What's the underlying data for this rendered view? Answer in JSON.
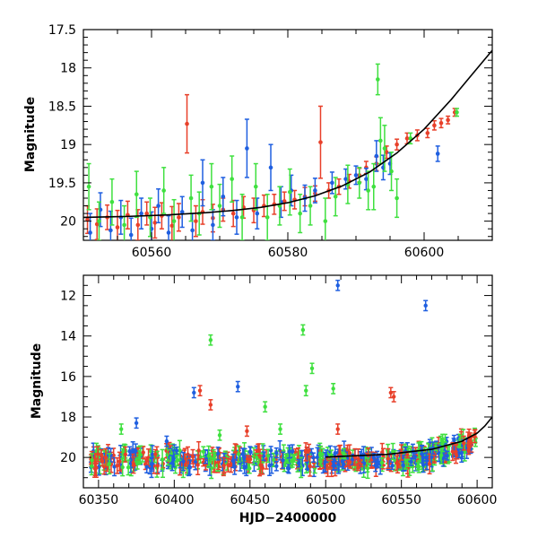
{
  "chart_data": [
    {
      "type": "scatter",
      "xlabel": "",
      "ylabel": "Magnitude",
      "xlim": [
        60550,
        60610
      ],
      "ylim": [
        20.25,
        17.5
      ],
      "y_inverted": true,
      "x_ticks": [
        60560,
        60580,
        60600
      ],
      "y_ticks": [
        17.5,
        18,
        18.5,
        19,
        19.5,
        20
      ],
      "y_tick_labels": [
        "17.5",
        "18",
        "18.5",
        "19",
        "19.5",
        "20"
      ],
      "colors": {
        "red": "#e8402a",
        "blue": "#1f5fe0",
        "green": "#3fe03f",
        "curve": "#000000"
      },
      "series": [
        {
          "color": "red",
          "points": [
            [
              60550.6,
              19.98,
              0.18
            ],
            [
              60552.0,
              20.04,
              0.2
            ],
            [
              60553.5,
              19.95,
              0.16
            ],
            [
              60555.0,
              20.08,
              0.22
            ],
            [
              60556.5,
              19.92,
              0.18
            ],
            [
              60558.0,
              20.05,
              0.2
            ],
            [
              60559.3,
              19.9,
              0.15
            ],
            [
              60560.5,
              20.02,
              0.2
            ],
            [
              60561.5,
              19.93,
              0.17
            ],
            [
              60563.0,
              20.06,
              0.25
            ],
            [
              60564.0,
              19.95,
              0.18
            ],
            [
              60565.2,
              18.73,
              0.38
            ],
            [
              60566.5,
              20.0,
              0.2
            ],
            [
              60567.5,
              19.88,
              0.16
            ],
            [
              60569.0,
              19.96,
              0.18
            ],
            [
              60570.5,
              19.85,
              0.15
            ],
            [
              60572.0,
              19.9,
              0.17
            ],
            [
              60573.5,
              19.82,
              0.14
            ],
            [
              60575.0,
              19.86,
              0.16
            ],
            [
              60576.5,
              19.8,
              0.14
            ],
            [
              60578.0,
              19.78,
              0.13
            ],
            [
              60579.5,
              19.74,
              0.12
            ],
            [
              60581.0,
              19.72,
              0.12
            ],
            [
              60582.5,
              19.68,
              0.12
            ],
            [
              60584.0,
              19.64,
              0.1
            ],
            [
              60584.8,
              18.97,
              0.47
            ],
            [
              60586.0,
              19.6,
              0.1
            ],
            [
              60587.5,
              19.55,
              0.1
            ],
            [
              60589.0,
              19.48,
              0.09
            ],
            [
              60590.5,
              19.4,
              0.09
            ],
            [
              60591.5,
              19.3,
              0.08
            ],
            [
              60593.0,
              19.25,
              0.09
            ],
            [
              60594.5,
              19.1,
              0.08
            ],
            [
              60596.0,
              19.0,
              0.07
            ],
            [
              60597.5,
              18.92,
              0.07
            ],
            [
              60599.0,
              18.88,
              0.07
            ],
            [
              60600.5,
              18.85,
              0.06
            ],
            [
              60601.5,
              18.75,
              0.06
            ],
            [
              60602.5,
              18.72,
              0.06
            ],
            [
              60603.5,
              18.68,
              0.05
            ],
            [
              60604.5,
              18.58,
              0.05
            ]
          ]
        },
        {
          "color": "blue",
          "points": [
            [
              60551.0,
              20.15,
              0.25
            ],
            [
              60552.5,
              19.85,
              0.22
            ],
            [
              60554.0,
              20.12,
              0.25
            ],
            [
              60555.5,
              19.95,
              0.22
            ],
            [
              60557.0,
              20.18,
              0.22
            ],
            [
              60558.5,
              19.9,
              0.2
            ],
            [
              60560.0,
              20.1,
              0.22
            ],
            [
              60561.0,
              19.8,
              0.22
            ],
            [
              60562.5,
              20.15,
              0.22
            ],
            [
              60564.5,
              19.88,
              0.2
            ],
            [
              60566.0,
              20.12,
              0.22
            ],
            [
              60567.5,
              19.5,
              0.3
            ],
            [
              60569.0,
              20.05,
              0.2
            ],
            [
              60570.5,
              19.68,
              0.25
            ],
            [
              60572.5,
              19.95,
              0.22
            ],
            [
              60574.0,
              19.05,
              0.38
            ],
            [
              60575.5,
              19.9,
              0.2
            ],
            [
              60577.5,
              19.3,
              0.3
            ],
            [
              60579.0,
              19.75,
              0.2
            ],
            [
              60580.5,
              19.6,
              0.2
            ],
            [
              60582.5,
              19.7,
              0.17
            ],
            [
              60584.0,
              19.6,
              0.16
            ],
            [
              60586.5,
              19.5,
              0.14
            ],
            [
              60588.5,
              19.45,
              0.13
            ],
            [
              60590.0,
              19.4,
              0.12
            ],
            [
              60591.5,
              19.45,
              0.14
            ],
            [
              60593.0,
              19.15,
              0.2
            ],
            [
              60594.0,
              19.3,
              0.16
            ],
            [
              60595.0,
              19.25,
              0.14
            ],
            [
              60602.0,
              19.12,
              0.1
            ]
          ]
        },
        {
          "color": "green",
          "points": [
            [
              60550.8,
              19.55,
              0.3
            ],
            [
              60552.3,
              20.0,
              0.25
            ],
            [
              60554.2,
              19.75,
              0.3
            ],
            [
              60556.0,
              20.05,
              0.25
            ],
            [
              60557.8,
              19.65,
              0.3
            ],
            [
              60559.8,
              19.95,
              0.25
            ],
            [
              60561.8,
              19.6,
              0.3
            ],
            [
              60563.3,
              20.0,
              0.28
            ],
            [
              60565.8,
              19.7,
              0.3
            ],
            [
              60567.0,
              19.9,
              0.28
            ],
            [
              60568.8,
              19.55,
              0.3
            ],
            [
              60570.0,
              19.8,
              0.28
            ],
            [
              60571.8,
              19.45,
              0.3
            ],
            [
              60573.3,
              19.95,
              0.3
            ],
            [
              60575.3,
              19.55,
              0.3
            ],
            [
              60577.0,
              19.95,
              0.3
            ],
            [
              60578.8,
              19.8,
              0.25
            ],
            [
              60580.3,
              19.62,
              0.3
            ],
            [
              60581.8,
              19.9,
              0.25
            ],
            [
              60583.3,
              19.8,
              0.25
            ],
            [
              60585.5,
              20.0,
              0.3
            ],
            [
              60587.0,
              19.68,
              0.25
            ],
            [
              60588.8,
              19.52,
              0.25
            ],
            [
              60590.5,
              19.5,
              0.2
            ],
            [
              60591.8,
              19.6,
              0.25
            ],
            [
              60592.6,
              19.55,
              0.3
            ],
            [
              60593.2,
              18.15,
              0.2
            ],
            [
              60593.6,
              18.95,
              0.3
            ],
            [
              60594.2,
              19.05,
              0.3
            ],
            [
              60595.2,
              19.35,
              0.25
            ],
            [
              60596.0,
              19.7,
              0.25
            ],
            [
              60598.0,
              18.92,
              0.07
            ],
            [
              60604.8,
              18.58,
              0.05
            ]
          ]
        }
      ],
      "curve": [
        [
          60550,
          19.95
        ],
        [
          60556,
          19.94
        ],
        [
          60562,
          19.92
        ],
        [
          60568,
          19.89
        ],
        [
          60572,
          19.86
        ],
        [
          60576,
          19.82
        ],
        [
          60580,
          19.76
        ],
        [
          60584,
          19.67
        ],
        [
          60588,
          19.54
        ],
        [
          60592,
          19.36
        ],
        [
          60596,
          19.11
        ],
        [
          60600,
          18.8
        ],
        [
          60604,
          18.41
        ],
        [
          60607,
          18.09
        ],
        [
          60610,
          17.77
        ]
      ]
    },
    {
      "type": "scatter",
      "xlabel": "HJD−2400000",
      "ylabel": "Magnitude",
      "xlim": [
        60340,
        60610
      ],
      "ylim": [
        21.5,
        11
      ],
      "y_inverted": true,
      "x_ticks": [
        60350,
        60400,
        60450,
        60500,
        60550,
        60600
      ],
      "y_ticks": [
        12,
        14,
        16,
        18,
        20
      ],
      "colors": {
        "red": "#e8402a",
        "blue": "#1f5fe0",
        "green": "#3fe03f",
        "curve": "#000000"
      },
      "outliers": {
        "blue": [
          [
            60508,
            11.5
          ],
          [
            60566,
            12.5
          ],
          [
            60413,
            16.8
          ],
          [
            60442,
            16.5
          ],
          [
            60375,
            18.3
          ],
          [
            60395,
            19.2
          ]
        ],
        "green": [
          [
            60424,
            14.2
          ],
          [
            60485,
            13.7
          ],
          [
            60491,
            15.6
          ],
          [
            60505,
            16.6
          ],
          [
            60460,
            17.5
          ],
          [
            60487,
            16.7
          ],
          [
            60365,
            18.6
          ],
          [
            60430,
            18.9
          ],
          [
            60470,
            18.6
          ]
        ],
        "red": [
          [
            60417,
            16.7
          ],
          [
            60424,
            17.4
          ],
          [
            60543,
            16.8
          ],
          [
            60545,
            17.0
          ],
          [
            60448,
            18.7
          ],
          [
            60508,
            18.6
          ]
        ]
      },
      "bulk_band": {
        "x_range": [
          60345,
          60600
        ],
        "mean_mag": 20.1,
        "scatter_mag": 0.45
      },
      "curve": [
        [
          60500,
          19.98
        ],
        [
          60540,
          19.85
        ],
        [
          60570,
          19.6
        ],
        [
          60590,
          19.2
        ],
        [
          60600,
          18.8
        ],
        [
          60605,
          18.45
        ],
        [
          60610,
          18.0
        ]
      ]
    }
  ]
}
